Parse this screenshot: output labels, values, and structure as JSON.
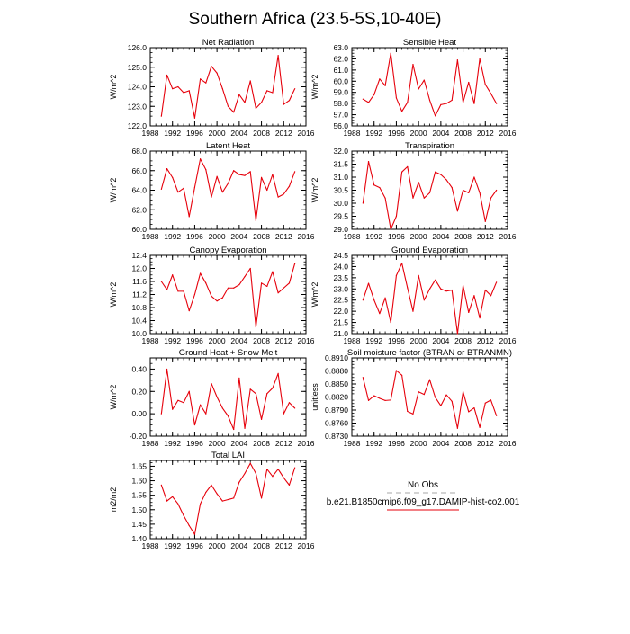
{
  "page": {
    "title": "Southern Africa (23.5-5S,10-40E)"
  },
  "legend": {
    "entries": [
      {
        "label": "No Obs",
        "color": "#a7a7a7",
        "dash": true
      },
      {
        "label": "b.e21.B1850cmip6.f09_g17.DAMIP-hist-co2.001",
        "color": "#e6000b",
        "dash": false
      }
    ]
  },
  "colors": {
    "series": "#e6000b",
    "axis": "#000000"
  },
  "chart_data": [
    {
      "type": "line",
      "title": "Net Radiation",
      "ylabel": "W/m^2",
      "xlim": [
        1988,
        2016
      ],
      "ylim": [
        122.0,
        126.0
      ],
      "xticks": [
        "1988",
        "1992",
        "1996",
        "2000",
        "2004",
        "2008",
        "2012",
        "2016"
      ],
      "yticks": [
        "122.0",
        "123.0",
        "124.0",
        "125.0",
        "126.0"
      ],
      "x": [
        1990,
        1991,
        1992,
        1993,
        1994,
        1995,
        1996,
        1997,
        1998,
        1999,
        2000,
        2001,
        2002,
        2003,
        2004,
        2005,
        2006,
        2007,
        2008,
        2009,
        2010,
        2011,
        2012,
        2013,
        2014
      ],
      "series": [
        {
          "values": [
            122.5,
            124.6,
            123.9,
            124.0,
            123.7,
            123.8,
            122.4,
            124.4,
            124.2,
            125.05,
            124.7,
            123.9,
            123.0,
            122.7,
            123.6,
            123.2,
            124.3,
            122.9,
            123.2,
            123.8,
            123.7,
            125.6,
            123.1,
            123.3,
            123.9
          ]
        }
      ]
    },
    {
      "type": "line",
      "title": "Sensible Heat",
      "ylabel": "W/m^2",
      "xlim": [
        1988,
        2016
      ],
      "ylim": [
        56.0,
        63.0
      ],
      "xticks": [
        "1988",
        "1992",
        "1996",
        "2000",
        "2004",
        "2008",
        "2012",
        "2016"
      ],
      "yticks": [
        "56.0",
        "57.0",
        "58.0",
        "59.0",
        "60.0",
        "61.0",
        "62.0",
        "63.0"
      ],
      "x": [
        1990,
        1991,
        1992,
        1993,
        1994,
        1995,
        1996,
        1997,
        1998,
        1999,
        2000,
        2001,
        2002,
        2003,
        2004,
        2005,
        2006,
        2007,
        2008,
        2009,
        2010,
        2011,
        2012,
        2013,
        2014
      ],
      "series": [
        {
          "values": [
            58.4,
            58.1,
            58.8,
            60.2,
            59.6,
            62.5,
            58.5,
            57.3,
            58.1,
            61.5,
            59.3,
            60.1,
            58.3,
            56.9,
            57.9,
            58.0,
            58.3,
            61.9,
            58.1,
            59.9,
            58.0,
            62.0,
            59.7,
            58.9,
            58.0
          ]
        }
      ]
    },
    {
      "type": "line",
      "title": "Latent Heat",
      "ylabel": "W/m^2",
      "xlim": [
        1988,
        2016
      ],
      "ylim": [
        60.0,
        68.0
      ],
      "xticks": [
        "1988",
        "1992",
        "1996",
        "2000",
        "2004",
        "2008",
        "2012",
        "2016"
      ],
      "yticks": [
        "60.0",
        "62.0",
        "64.0",
        "66.0",
        "68.0"
      ],
      "x": [
        1990,
        1991,
        1992,
        1993,
        1994,
        1995,
        1996,
        1997,
        1998,
        1999,
        2000,
        2001,
        2002,
        2003,
        2004,
        2005,
        2006,
        2007,
        2008,
        2009,
        2010,
        2011,
        2012,
        2013,
        2014
      ],
      "series": [
        {
          "values": [
            64.1,
            66.2,
            65.3,
            63.8,
            64.2,
            61.3,
            64.3,
            67.2,
            66.1,
            63.3,
            65.4,
            63.8,
            64.7,
            66.0,
            65.6,
            65.5,
            65.9,
            60.9,
            65.3,
            64.0,
            65.6,
            63.3,
            63.6,
            64.4,
            65.9
          ]
        }
      ]
    },
    {
      "type": "line",
      "title": "Transpiration",
      "ylabel": "W/m^2",
      "xlim": [
        1988,
        2016
      ],
      "ylim": [
        29.0,
        32.0
      ],
      "xticks": [
        "1988",
        "1992",
        "1996",
        "2000",
        "2004",
        "2008",
        "2012",
        "2016"
      ],
      "yticks": [
        "29.0",
        "29.5",
        "30.0",
        "30.5",
        "31.0",
        "31.5",
        "32.0"
      ],
      "x": [
        1990,
        1991,
        1992,
        1993,
        1994,
        1995,
        1996,
        1997,
        1998,
        1999,
        2000,
        2001,
        2002,
        2003,
        2004,
        2005,
        2006,
        2007,
        2008,
        2009,
        2010,
        2011,
        2012,
        2013,
        2014
      ],
      "series": [
        {
          "values": [
            30.0,
            31.6,
            30.7,
            30.6,
            30.2,
            29.0,
            29.5,
            31.2,
            31.4,
            30.2,
            30.8,
            30.2,
            30.4,
            31.2,
            31.1,
            30.9,
            30.6,
            29.7,
            30.5,
            30.4,
            31.0,
            30.4,
            29.3,
            30.2,
            30.5
          ]
        }
      ]
    },
    {
      "type": "line",
      "title": "Canopy Evaporation",
      "ylabel": "W/m^2",
      "xlim": [
        1988,
        2016
      ],
      "ylim": [
        10.0,
        12.4
      ],
      "xticks": [
        "1988",
        "1992",
        "1996",
        "2000",
        "2004",
        "2008",
        "2012",
        "2016"
      ],
      "yticks": [
        "10.0",
        "10.4",
        "10.8",
        "11.2",
        "11.6",
        "12.0",
        "12.4"
      ],
      "x": [
        1990,
        1991,
        1992,
        1993,
        1994,
        1995,
        1996,
        1997,
        1998,
        1999,
        2000,
        2001,
        2002,
        2003,
        2004,
        2005,
        2006,
        2007,
        2008,
        2009,
        2010,
        2011,
        2012,
        2013,
        2014
      ],
      "series": [
        {
          "values": [
            11.6,
            11.35,
            11.8,
            11.3,
            11.3,
            10.7,
            11.2,
            11.85,
            11.55,
            11.15,
            11.0,
            11.1,
            11.4,
            11.4,
            11.5,
            11.75,
            12.0,
            10.2,
            11.55,
            11.45,
            11.9,
            11.25,
            11.4,
            11.55,
            12.15
          ]
        }
      ]
    },
    {
      "type": "line",
      "title": "Ground Evaporation",
      "ylabel": "W/m^2",
      "xlim": [
        1988,
        2016
      ],
      "ylim": [
        21.0,
        24.5
      ],
      "xticks": [
        "1988",
        "1992",
        "1996",
        "2000",
        "2004",
        "2008",
        "2012",
        "2016"
      ],
      "yticks": [
        "21.0",
        "21.5",
        "22.0",
        "22.5",
        "23.0",
        "23.5",
        "24.0",
        "24.5"
      ],
      "x": [
        1990,
        1991,
        1992,
        1993,
        1994,
        1995,
        1996,
        1997,
        1998,
        1999,
        2000,
        2001,
        2002,
        2003,
        2004,
        2005,
        2006,
        2007,
        2008,
        2009,
        2010,
        2011,
        2012,
        2013,
        2014
      ],
      "series": [
        {
          "values": [
            22.5,
            23.25,
            22.5,
            21.9,
            22.6,
            21.5,
            23.6,
            24.15,
            23.05,
            22.0,
            23.6,
            22.5,
            23.0,
            23.4,
            23.0,
            22.9,
            22.95,
            21.0,
            23.15,
            21.95,
            22.7,
            21.7,
            22.95,
            22.7,
            23.3
          ]
        }
      ]
    },
    {
      "type": "line",
      "title": "Ground Heat + Snow Melt",
      "ylabel": "W/m^2",
      "xlim": [
        1988,
        2016
      ],
      "ylim": [
        -0.2,
        0.5
      ],
      "xticks": [
        "1988",
        "1992",
        "1996",
        "2000",
        "2004",
        "2008",
        "2012",
        "2016"
      ],
      "yticks": [
        "-0.20",
        "0.00",
        "0.20",
        "0.40"
      ],
      "x": [
        1990,
        1991,
        1992,
        1993,
        1994,
        1995,
        1996,
        1997,
        1998,
        1999,
        2000,
        2001,
        2002,
        2003,
        2004,
        2005,
        2006,
        2007,
        2008,
        2009,
        2010,
        2011,
        2012,
        2013,
        2014
      ],
      "series": [
        {
          "values": [
            0.0,
            0.4,
            0.04,
            0.12,
            0.1,
            0.2,
            -0.1,
            0.08,
            0.0,
            0.27,
            0.15,
            0.05,
            -0.02,
            -0.14,
            0.32,
            -0.13,
            0.22,
            0.18,
            -0.05,
            0.18,
            0.23,
            0.36,
            0.0,
            0.1,
            0.05
          ]
        }
      ]
    },
    {
      "type": "line",
      "title": "Soil moisture factor (BTRAN or BTRANMN)",
      "ylabel": "unitless",
      "xlim": [
        1988,
        2016
      ],
      "ylim": [
        0.873,
        0.891
      ],
      "xticks": [
        "1988",
        "1992",
        "1996",
        "2000",
        "2004",
        "2008",
        "2012",
        "2016"
      ],
      "yticks": [
        "0.8730",
        "0.8760",
        "0.8790",
        "0.8820",
        "0.8850",
        "0.8880",
        "0.8910"
      ],
      "x": [
        1990,
        1991,
        1992,
        1993,
        1994,
        1995,
        1996,
        1997,
        1998,
        1999,
        2000,
        2001,
        2002,
        2003,
        2004,
        2005,
        2006,
        2007,
        2008,
        2009,
        2010,
        2011,
        2012,
        2013,
        2014
      ],
      "series": [
        {
          "values": [
            0.8865,
            0.8812,
            0.8823,
            0.8817,
            0.8812,
            0.8813,
            0.8881,
            0.887,
            0.8787,
            0.8781,
            0.8832,
            0.8826,
            0.886,
            0.8819,
            0.88,
            0.8825,
            0.881,
            0.8748,
            0.8832,
            0.8786,
            0.8795,
            0.875,
            0.8806,
            0.8813,
            0.8777
          ]
        }
      ]
    },
    {
      "type": "line",
      "title": "Total LAI",
      "ylabel": "m2/m2",
      "xlim": [
        1988,
        2016
      ],
      "ylim": [
        1.4,
        1.67
      ],
      "xticks": [
        "1988",
        "1992",
        "1996",
        "2000",
        "2004",
        "2008",
        "2012",
        "2016"
      ],
      "yticks": [
        "1.40",
        "1.45",
        "1.50",
        "1.55",
        "1.60",
        "1.65"
      ],
      "x": [
        1990,
        1991,
        1992,
        1993,
        1994,
        1995,
        1996,
        1997,
        1998,
        1999,
        2000,
        2001,
        2002,
        2003,
        2004,
        2005,
        2006,
        2007,
        2008,
        2009,
        2010,
        2011,
        2012,
        2013,
        2014
      ],
      "series": [
        {
          "values": [
            1.585,
            1.53,
            1.545,
            1.52,
            1.48,
            1.445,
            1.415,
            1.52,
            1.56,
            1.585,
            1.555,
            1.53,
            1.535,
            1.54,
            1.595,
            1.625,
            1.66,
            1.625,
            1.54,
            1.64,
            1.615,
            1.64,
            1.61,
            1.585,
            1.645
          ]
        }
      ]
    }
  ]
}
